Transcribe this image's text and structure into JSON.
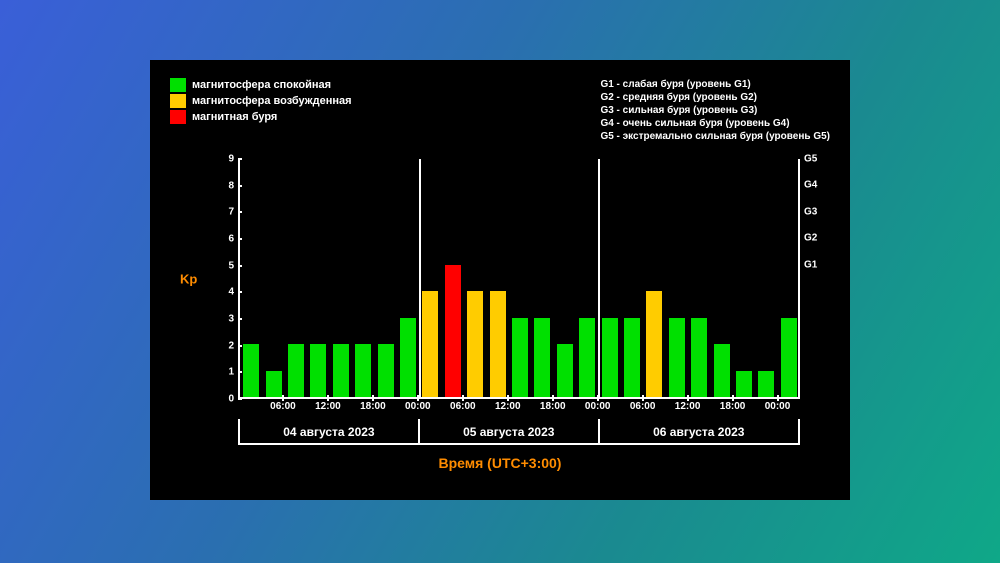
{
  "chart": {
    "type": "bar",
    "background_color": "#000000",
    "axis_color": "#ffffff",
    "text_color": "#ffffff",
    "accent_color": "#ff8c00",
    "kp_label": "Kp",
    "time_label": "Время (UTC+3:00)",
    "ylim": [
      0,
      9
    ],
    "yticks": [
      0,
      1,
      2,
      3,
      4,
      5,
      6,
      7,
      8,
      9
    ],
    "colors": {
      "calm": "#00e000",
      "excited": "#ffcc00",
      "storm": "#ff0000"
    },
    "legend_left": [
      {
        "label": "магнитосфера спокойная",
        "color": "#00e000"
      },
      {
        "label": "магнитосфера возбужденная",
        "color": "#ffcc00"
      },
      {
        "label": "магнитная буря",
        "color": "#ff0000"
      }
    ],
    "legend_right": [
      "G1 - слабая буря (уровень G1)",
      "G2 - средняя буря (уровень G2)",
      "G3 - сильная буря (уровень G3)",
      "G4 - очень сильная буря (уровень G4)",
      "G5 - экстремально сильная буря (уровень G5)"
    ],
    "g_scale": [
      {
        "label": "G1",
        "kp": 5
      },
      {
        "label": "G2",
        "kp": 6
      },
      {
        "label": "G3",
        "kp": 7
      },
      {
        "label": "G4",
        "kp": 8
      },
      {
        "label": "G5",
        "kp": 9
      }
    ],
    "dates": [
      "04 августа 2023",
      "05 августа 2023",
      "06 августа 2023"
    ],
    "x_ticks": [
      "06:00",
      "12:00",
      "18:00",
      "00:00",
      "06:00",
      "12:00",
      "18:00",
      "00:00",
      "06:00",
      "12:00",
      "18:00",
      "00:00"
    ],
    "bar_width_ratio": 0.72,
    "bars": [
      {
        "value": 2,
        "state": "calm"
      },
      {
        "value": 1,
        "state": "calm"
      },
      {
        "value": 2,
        "state": "calm"
      },
      {
        "value": 2,
        "state": "calm"
      },
      {
        "value": 2,
        "state": "calm"
      },
      {
        "value": 2,
        "state": "calm"
      },
      {
        "value": 2,
        "state": "calm"
      },
      {
        "value": 3,
        "state": "calm"
      },
      {
        "value": 4,
        "state": "excited"
      },
      {
        "value": 5,
        "state": "storm"
      },
      {
        "value": 4,
        "state": "excited"
      },
      {
        "value": 4,
        "state": "excited"
      },
      {
        "value": 3,
        "state": "calm"
      },
      {
        "value": 3,
        "state": "calm"
      },
      {
        "value": 2,
        "state": "calm"
      },
      {
        "value": 3,
        "state": "calm"
      },
      {
        "value": 3,
        "state": "calm"
      },
      {
        "value": 3,
        "state": "calm"
      },
      {
        "value": 4,
        "state": "excited"
      },
      {
        "value": 3,
        "state": "calm"
      },
      {
        "value": 3,
        "state": "calm"
      },
      {
        "value": 2,
        "state": "calm"
      },
      {
        "value": 1,
        "state": "calm"
      },
      {
        "value": 1,
        "state": "calm"
      },
      {
        "value": 3,
        "state": "calm"
      }
    ]
  }
}
